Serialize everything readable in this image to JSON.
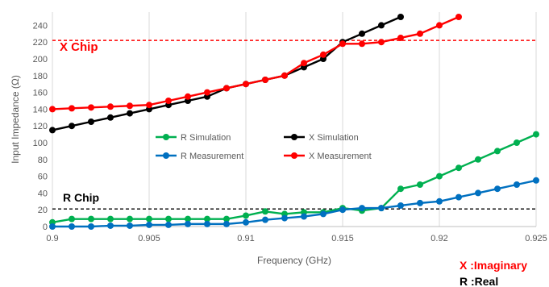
{
  "chart_data": {
    "type": "line",
    "title": "",
    "xlabel": "Frequency (GHz)",
    "ylabel": "Input Impedance (Ω)",
    "xlim": [
      0.9,
      0.925
    ],
    "ylim": [
      0,
      250
    ],
    "x_ticks": [
      "0.9",
      "0.905",
      "0.91",
      "0.915",
      "0.92",
      "0.925"
    ],
    "y_ticks": [
      "0",
      "20",
      "40",
      "60",
      "80",
      "100",
      "120",
      "140",
      "160",
      "180",
      "200",
      "220",
      "240"
    ],
    "grid": "vertical",
    "legend_position": "center",
    "series": [
      {
        "name": "R Simulation",
        "color": "#00b050",
        "x": [
          0.9,
          0.901,
          0.902,
          0.903,
          0.904,
          0.905,
          0.906,
          0.907,
          0.908,
          0.909,
          0.91,
          0.911,
          0.912,
          0.913,
          0.914,
          0.915,
          0.916,
          0.917,
          0.918,
          0.919,
          0.92,
          0.921,
          0.922,
          0.923,
          0.924,
          0.925
        ],
        "values": [
          5,
          9,
          9,
          9,
          9,
          9,
          9,
          9,
          9,
          9,
          13,
          18,
          15,
          17,
          17,
          22,
          19,
          22,
          45,
          50,
          60,
          70,
          80,
          90,
          100,
          110
        ]
      },
      {
        "name": "R Measurement",
        "color": "#0070c0",
        "x": [
          0.9,
          0.901,
          0.902,
          0.903,
          0.904,
          0.905,
          0.906,
          0.907,
          0.908,
          0.909,
          0.91,
          0.911,
          0.912,
          0.913,
          0.914,
          0.915,
          0.916,
          0.917,
          0.918,
          0.919,
          0.92,
          0.921,
          0.922,
          0.923,
          0.924,
          0.925
        ],
        "values": [
          0,
          0,
          0,
          1,
          1,
          2,
          2,
          3,
          3,
          3,
          5,
          8,
          10,
          12,
          15,
          20,
          22,
          22,
          25,
          28,
          30,
          35,
          40,
          45,
          50,
          55
        ]
      },
      {
        "name": "X Simulation",
        "color": "#000000",
        "x": [
          0.9,
          0.901,
          0.902,
          0.903,
          0.904,
          0.905,
          0.906,
          0.907,
          0.908,
          0.909,
          0.91,
          0.911,
          0.912,
          0.913,
          0.914,
          0.915,
          0.916,
          0.917,
          0.918
        ],
        "values": [
          115,
          120,
          125,
          130,
          135,
          140,
          145,
          150,
          155,
          165,
          170,
          175,
          180,
          190,
          200,
          220,
          230,
          240,
          250
        ]
      },
      {
        "name": "X Measurement",
        "color": "#ff0000",
        "x": [
          0.9,
          0.901,
          0.902,
          0.903,
          0.904,
          0.905,
          0.906,
          0.907,
          0.908,
          0.909,
          0.91,
          0.911,
          0.912,
          0.913,
          0.914,
          0.915,
          0.916,
          0.917,
          0.918,
          0.919,
          0.92,
          0.921
        ],
        "values": [
          140,
          141,
          142,
          143,
          144,
          145,
          150,
          155,
          160,
          165,
          170,
          175,
          180,
          195,
          205,
          218,
          218,
          220,
          225,
          230,
          240,
          250
        ]
      }
    ],
    "reference_lines": [
      {
        "label": "X Chip",
        "value": 222,
        "color": "#ff0000"
      },
      {
        "label": "R Chip",
        "value": 21,
        "color": "#000000"
      }
    ]
  },
  "notes": {
    "x_label": "X :Imaginary",
    "r_label": "R :Real"
  }
}
